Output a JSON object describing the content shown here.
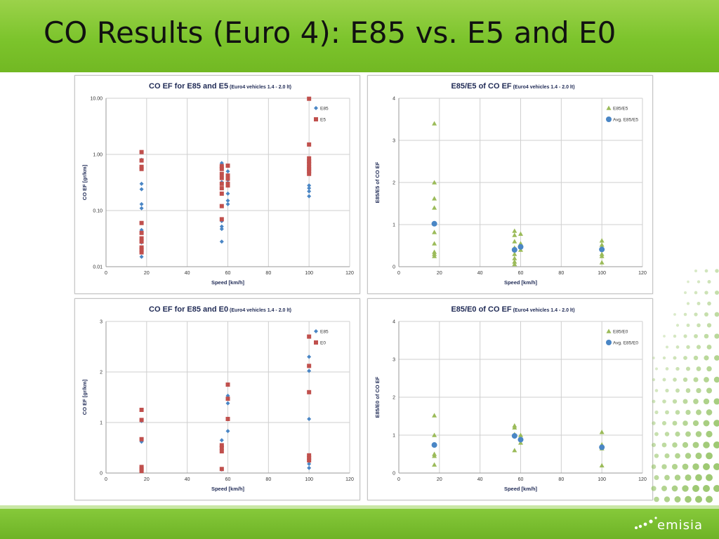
{
  "slide": {
    "title": "CO Results (Euro 4): E85 vs. E5 and E0",
    "logo_text": "emisia"
  },
  "colors": {
    "title_bar": "#7cc42c",
    "e85": "#4a86c5",
    "e5": "#c0504d",
    "ratio": "#9bbb59",
    "avg": "#4a86c5"
  },
  "chart_data": [
    {
      "id": "e85-e5",
      "type": "scatter",
      "title": "CO EF for E85 and E5",
      "subtitle": "(Euro4 vehicles 1.4 - 2.0 lt)",
      "xlabel": "Speed [km/h]",
      "ylabel": "CO EF [gr/km]",
      "xlim": [
        0,
        120
      ],
      "xticks": [
        0,
        20,
        40,
        60,
        80,
        100,
        120
      ],
      "yscale": "log",
      "ylim": [
        0.01,
        10
      ],
      "yticks": [
        0.01,
        0.1,
        1,
        10
      ],
      "ytick_labels": [
        "0.01",
        "0.10",
        "1.00",
        "10.00"
      ],
      "grid": true,
      "legend": "top-right",
      "series": [
        {
          "name": "E85",
          "marker": "diamond",
          "color": "#4a86c5",
          "points": [
            [
              17.5,
              0.3
            ],
            [
              17.5,
              0.24
            ],
            [
              17.5,
              0.13
            ],
            [
              17.5,
              0.11
            ],
            [
              17.5,
              0.8
            ],
            [
              17.5,
              0.06
            ],
            [
              17.5,
              0.045
            ],
            [
              17.5,
              0.027
            ],
            [
              17.5,
              0.022
            ],
            [
              17.5,
              0.018
            ],
            [
              17.5,
              0.015
            ],
            [
              57,
              0.7
            ],
            [
              57,
              0.55
            ],
            [
              57,
              0.4
            ],
            [
              57,
              0.32
            ],
            [
              57,
              0.25
            ],
            [
              57,
              0.065
            ],
            [
              57,
              0.052
            ],
            [
              57,
              0.047
            ],
            [
              57,
              0.028
            ],
            [
              60,
              0.5
            ],
            [
              60,
              0.35
            ],
            [
              60,
              0.3
            ],
            [
              60,
              0.2
            ],
            [
              60,
              0.15
            ],
            [
              60,
              0.13
            ],
            [
              100,
              0.28
            ],
            [
              100,
              0.25
            ],
            [
              100,
              0.22
            ],
            [
              100,
              0.18
            ],
            [
              100,
              0.6
            ]
          ]
        },
        {
          "name": "E5",
          "marker": "square",
          "color": "#c0504d",
          "points": [
            [
              17.5,
              1.1
            ],
            [
              17.5,
              0.78
            ],
            [
              17.5,
              0.6
            ],
            [
              17.5,
              0.55
            ],
            [
              17.5,
              0.06
            ],
            [
              17.5,
              0.04
            ],
            [
              17.5,
              0.032
            ],
            [
              17.5,
              0.028
            ],
            [
              17.5,
              0.022
            ],
            [
              17.5,
              0.02
            ],
            [
              17.5,
              0.018
            ],
            [
              57,
              0.62
            ],
            [
              57,
              0.55
            ],
            [
              57,
              0.45
            ],
            [
              57,
              0.38
            ],
            [
              57,
              0.3
            ],
            [
              57,
              0.25
            ],
            [
              57,
              0.2
            ],
            [
              57,
              0.12
            ],
            [
              57,
              0.07
            ],
            [
              60,
              0.63
            ],
            [
              60,
              0.42
            ],
            [
              60,
              0.37
            ],
            [
              60,
              0.3
            ],
            [
              60,
              0.28
            ],
            [
              100,
              9.8
            ],
            [
              100,
              1.5
            ],
            [
              100,
              0.85
            ],
            [
              100,
              0.75
            ],
            [
              100,
              0.68
            ],
            [
              100,
              0.6
            ],
            [
              100,
              0.55
            ],
            [
              100,
              0.5
            ],
            [
              100,
              0.45
            ]
          ]
        }
      ]
    },
    {
      "id": "e85-e5-ratio",
      "type": "scatter",
      "title": "E85/E5 of CO EF",
      "subtitle": "(Euro4 vehicles 1.4 - 2.0 lt)",
      "xlabel": "Speed [km/h]",
      "ylabel": "E85/E5 of CO EF",
      "xlim": [
        0,
        120
      ],
      "xticks": [
        0,
        20,
        40,
        60,
        80,
        100,
        120
      ],
      "ylim": [
        0,
        4
      ],
      "yticks": [
        0,
        1,
        2,
        3,
        4
      ],
      "ytick_labels": [
        "0",
        "1",
        "2",
        "3",
        "4"
      ],
      "grid": true,
      "legend": "top-right",
      "series": [
        {
          "name": "E85/E5",
          "marker": "triangle",
          "color": "#9bbb59",
          "points": [
            [
              17.5,
              3.4
            ],
            [
              17.5,
              2.0
            ],
            [
              17.5,
              1.62
            ],
            [
              17.5,
              1.4
            ],
            [
              17.5,
              0.82
            ],
            [
              17.5,
              0.55
            ],
            [
              17.5,
              0.35
            ],
            [
              17.5,
              0.3
            ],
            [
              17.5,
              0.25
            ],
            [
              57,
              0.85
            ],
            [
              57,
              0.75
            ],
            [
              57,
              0.6
            ],
            [
              57,
              0.45
            ],
            [
              57,
              0.3
            ],
            [
              57,
              0.2
            ],
            [
              57,
              0.12
            ],
            [
              57,
              0.06
            ],
            [
              60,
              0.78
            ],
            [
              60,
              0.55
            ],
            [
              60,
              0.4
            ],
            [
              100,
              0.62
            ],
            [
              100,
              0.52
            ],
            [
              100,
              0.45
            ],
            [
              100,
              0.3
            ],
            [
              100,
              0.25
            ],
            [
              100,
              0.1
            ]
          ]
        },
        {
          "name": "Avg. E85/E5",
          "marker": "circle",
          "color": "#4a86c5",
          "points": [
            [
              17.5,
              1.02
            ],
            [
              57,
              0.4
            ],
            [
              60,
              0.47
            ],
            [
              100,
              0.41
            ]
          ]
        }
      ]
    },
    {
      "id": "e85-e0",
      "type": "scatter",
      "title": "CO EF for E85 and E0",
      "subtitle": "(Euro4 vehicles 1.4 - 2.0 lt)",
      "xlabel": "Speed [km/h]",
      "ylabel": "CO EF [gr/km]",
      "xlim": [
        0,
        120
      ],
      "xticks": [
        0,
        20,
        40,
        60,
        80,
        100,
        120
      ],
      "ylim": [
        0,
        3
      ],
      "yticks": [
        0,
        1,
        2,
        3
      ],
      "ytick_labels": [
        "0",
        "1",
        "2",
        "3"
      ],
      "grid": true,
      "legend": "top-right",
      "series": [
        {
          "name": "E85",
          "marker": "diamond",
          "color": "#4a86c5",
          "points": [
            [
              17.5,
              1.03
            ],
            [
              17.5,
              0.62
            ],
            [
              17.5,
              0.06
            ],
            [
              17.5,
              0.04
            ],
            [
              57,
              0.65
            ],
            [
              57,
              0.52
            ],
            [
              57,
              0.45
            ],
            [
              57,
              0.07
            ],
            [
              60,
              1.53
            ],
            [
              60,
              1.38
            ],
            [
              60,
              0.83
            ],
            [
              100,
              2.3
            ],
            [
              100,
              2.02
            ],
            [
              100,
              1.07
            ],
            [
              100,
              0.18
            ],
            [
              100,
              0.1
            ]
          ]
        },
        {
          "name": "E0",
          "marker": "square",
          "color": "#c0504d",
          "points": [
            [
              17.5,
              1.25
            ],
            [
              17.5,
              1.05
            ],
            [
              17.5,
              0.67
            ],
            [
              17.5,
              0.12
            ],
            [
              17.5,
              0.08
            ],
            [
              17.5,
              0.04
            ],
            [
              57,
              0.55
            ],
            [
              57,
              0.5
            ],
            [
              57,
              0.43
            ],
            [
              57,
              0.08
            ],
            [
              60,
              1.75
            ],
            [
              60,
              1.47
            ],
            [
              60,
              1.07
            ],
            [
              100,
              2.7
            ],
            [
              100,
              2.12
            ],
            [
              100,
              1.6
            ],
            [
              100,
              0.35
            ],
            [
              100,
              0.3
            ],
            [
              100,
              0.25
            ]
          ]
        }
      ]
    },
    {
      "id": "e85-e0-ratio",
      "type": "scatter",
      "title": "E85/E0 of CO EF",
      "subtitle": "(Euro4 vehicles 1.4 - 2.0 lt)",
      "xlabel": "Speed [km/h]",
      "ylabel": "E85/E0 of CO EF",
      "xlim": [
        0,
        120
      ],
      "xticks": [
        0,
        20,
        40,
        60,
        80,
        100,
        120
      ],
      "ylim": [
        0,
        4
      ],
      "yticks": [
        0,
        1,
        2,
        3,
        4
      ],
      "ytick_labels": [
        "0",
        "1",
        "2",
        "3",
        "4"
      ],
      "grid": true,
      "legend": "top-right",
      "series": [
        {
          "name": "E85/E0",
          "marker": "triangle",
          "color": "#9bbb59",
          "points": [
            [
              17.5,
              1.52
            ],
            [
              17.5,
              1.0
            ],
            [
              17.5,
              0.5
            ],
            [
              17.5,
              0.45
            ],
            [
              17.5,
              0.22
            ],
            [
              57,
              1.25
            ],
            [
              57,
              1.2
            ],
            [
              57,
              1.02
            ],
            [
              57,
              0.6
            ],
            [
              60,
              1.0
            ],
            [
              60,
              0.8
            ],
            [
              100,
              1.08
            ],
            [
              100,
              0.75
            ],
            [
              100,
              0.65
            ],
            [
              100,
              0.2
            ]
          ]
        },
        {
          "name": "Avg. E85/E0",
          "marker": "circle",
          "color": "#4a86c5",
          "points": [
            [
              17.5,
              0.74
            ],
            [
              57,
              0.98
            ],
            [
              60,
              0.88
            ],
            [
              100,
              0.68
            ]
          ]
        }
      ]
    }
  ]
}
